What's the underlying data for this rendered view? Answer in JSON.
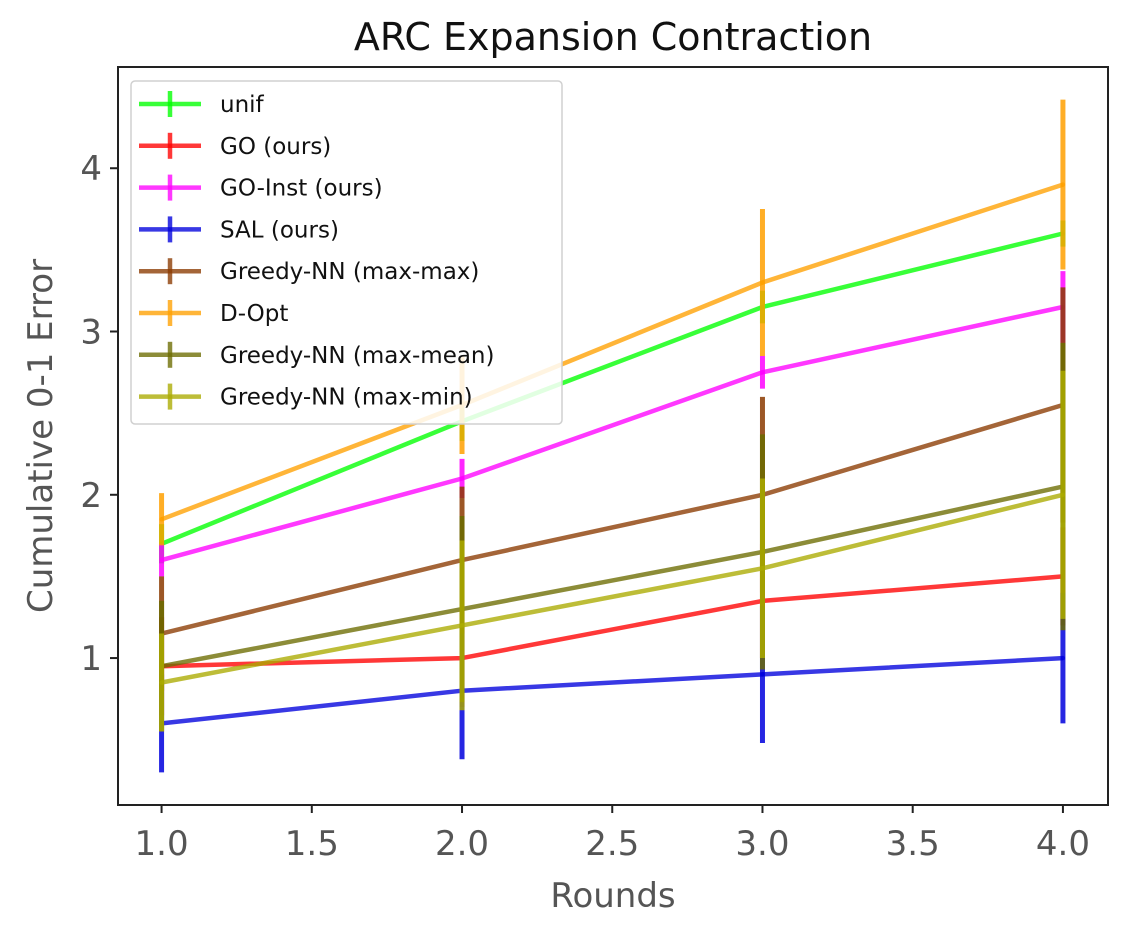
{
  "chart_data": {
    "type": "line",
    "title": "ARC Expansion Contraction",
    "xlabel": "Rounds",
    "ylabel": "Cumulative 0-1 Error",
    "x": [
      1.0,
      2.0,
      3.0,
      4.0
    ],
    "xlim": [
      0.855,
      4.15
    ],
    "ylim": [
      0.1,
      4.62
    ],
    "xticks": [
      "1.0",
      "1.5",
      "2.0",
      "2.5",
      "3.0",
      "3.5",
      "4.0"
    ],
    "yticks": [
      "1",
      "2",
      "3",
      "4"
    ],
    "grid": false,
    "legend_position": "top-left",
    "series": [
      {
        "name": "unif",
        "color": "#00ff00",
        "values": [
          1.7,
          2.45,
          3.15,
          3.6
        ],
        "err": [
          0.12,
          0.12,
          0.1,
          0.08
        ]
      },
      {
        "name": "GO (ours)",
        "color": "#ff0000",
        "values": [
          0.95,
          1.0,
          1.35,
          1.5
        ],
        "err": [
          0.3,
          0.3,
          0.35,
          0.3
        ]
      },
      {
        "name": "GO-Inst (ours)",
        "color": "#ff00ff",
        "values": [
          1.6,
          2.1,
          2.75,
          3.15
        ],
        "err": [
          0.1,
          0.12,
          0.1,
          0.22
        ]
      },
      {
        "name": "SAL (ours)",
        "color": "#0000dd",
        "values": [
          0.6,
          0.8,
          0.9,
          1.0
        ],
        "err": [
          0.3,
          0.42,
          0.42,
          0.4
        ]
      },
      {
        "name": "Greedy-NN (max-max)",
        "color": "#8b3a00",
        "values": [
          1.15,
          1.6,
          2.0,
          2.55
        ],
        "err": [
          0.35,
          0.45,
          0.6,
          0.72
        ]
      },
      {
        "name": "D-Opt",
        "color": "#ffa000",
        "values": [
          1.85,
          2.55,
          3.3,
          3.9
        ],
        "err": [
          0.16,
          0.3,
          0.45,
          0.52
        ]
      },
      {
        "name": "Greedy-NN (max-mean)",
        "color": "#6b6b00",
        "values": [
          0.95,
          1.3,
          1.65,
          2.05
        ],
        "err": [
          0.4,
          0.57,
          0.72,
          0.88
        ]
      },
      {
        "name": "Greedy-NN (max-min)",
        "color": "#aaaa00",
        "values": [
          0.85,
          1.2,
          1.55,
          2.0
        ],
        "err": [
          0.3,
          0.52,
          0.55,
          0.76
        ]
      }
    ]
  }
}
